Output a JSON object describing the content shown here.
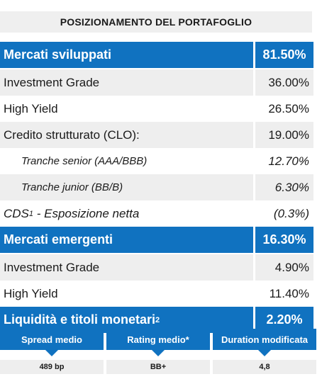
{
  "title": "POSIZIONAMENTO DEL PORTAFOGLIO",
  "rows": [
    {
      "label": "Mercati sviluppati",
      "value": "81.50%"
    },
    {
      "label": "Investment Grade",
      "value": "36.00%"
    },
    {
      "label": "High Yield",
      "value": "26.50%"
    },
    {
      "label": "Credito strutturato (CLO):",
      "value": "19.00%"
    },
    {
      "label": "Tranche senior (AAA/BBB)",
      "value": "12.70%"
    },
    {
      "label": "Tranche junior (BB/B)",
      "value": "6.30%"
    },
    {
      "label": "CDS",
      "label_sup": "1",
      "label_rest": " - Esposizione netta",
      "value": "(0.3%)"
    },
    {
      "label": "Mercati emergenti",
      "value": "16.30%"
    },
    {
      "label": "Investment Grade",
      "value": "4.90%"
    },
    {
      "label": "High Yield",
      "value": "11.40%"
    },
    {
      "label": "Liquidità e titoli monetari",
      "label_sup": "2",
      "value": "2.20%"
    }
  ],
  "stats": [
    {
      "label": "Spread medio",
      "value": "489 bp"
    },
    {
      "label": "Rating medio*",
      "value": "BB+"
    },
    {
      "label": "Duration modificata",
      "value": "4,8"
    }
  ],
  "colors": {
    "header_blue": "#1072c0",
    "row_gray": "#eeeeee"
  }
}
